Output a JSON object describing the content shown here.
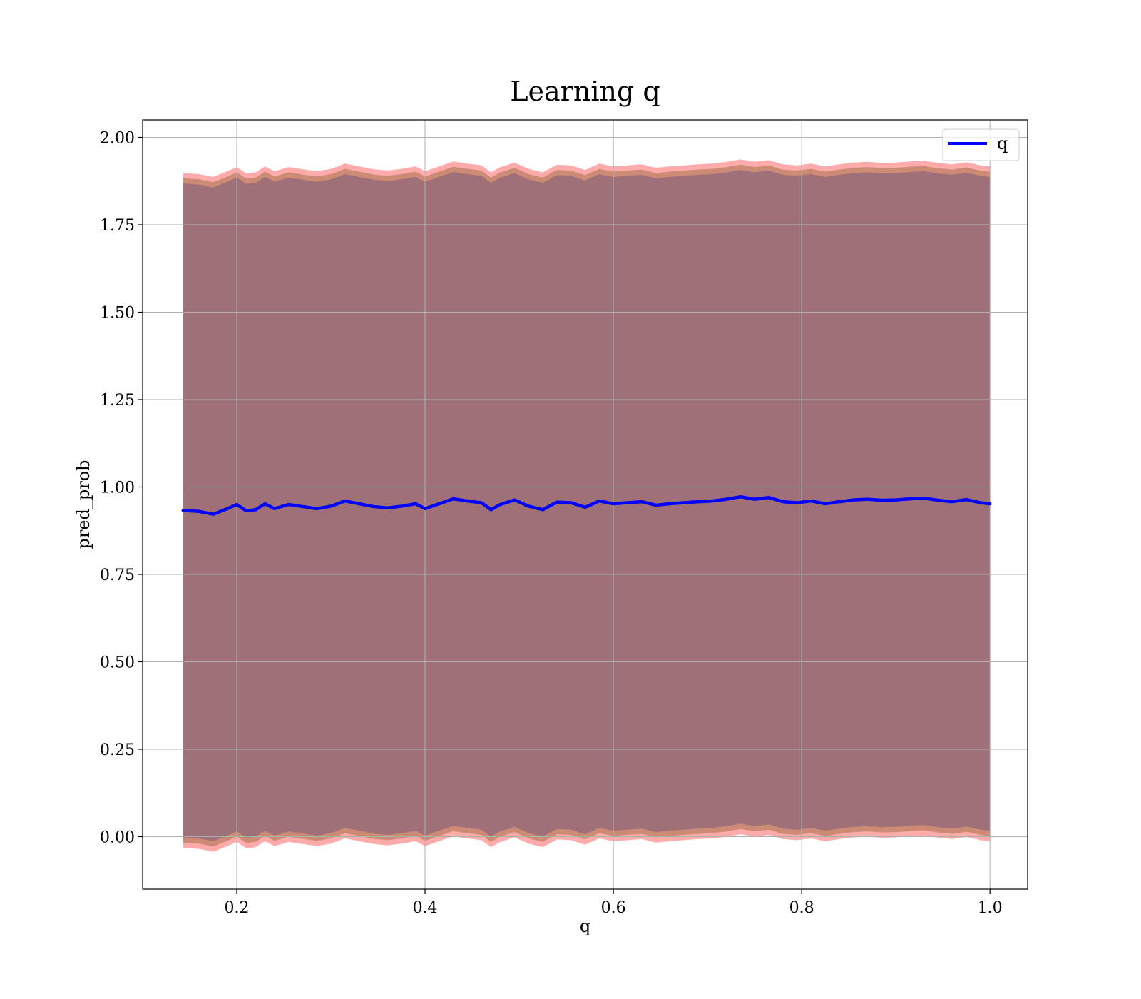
{
  "chart_data": {
    "type": "line",
    "title": "Learning q",
    "xlabel": "q",
    "ylabel": "pred_prob",
    "xlim": [
      0.1,
      1.04
    ],
    "ylim": [
      -0.15,
      2.05
    ],
    "xticks": [
      0.2,
      0.4,
      0.6,
      0.8,
      1.0
    ],
    "xtick_labels": [
      "0.2",
      "0.4",
      "0.6",
      "0.8",
      "1.0"
    ],
    "yticks": [
      0.0,
      0.25,
      0.5,
      0.75,
      1.0,
      1.25,
      1.5,
      1.75,
      2.0
    ],
    "ytick_labels": [
      "0.00",
      "0.25",
      "0.50",
      "0.75",
      "1.00",
      "1.25",
      "1.50",
      "1.75",
      "2.00"
    ],
    "grid": true,
    "legend": {
      "position": "top-right",
      "entries": [
        "q"
      ]
    },
    "colors": {
      "line": "#0000ff",
      "outer_band": "#ff9c9c",
      "middle_band": "#c8866e",
      "inner_band": "#a07078",
      "grid": "#b0b0b0"
    },
    "series": [
      {
        "name": "q",
        "x": [
          0.143,
          0.16,
          0.175,
          0.19,
          0.2,
          0.21,
          0.22,
          0.23,
          0.24,
          0.255,
          0.27,
          0.285,
          0.3,
          0.315,
          0.33,
          0.345,
          0.36,
          0.375,
          0.39,
          0.4,
          0.415,
          0.43,
          0.445,
          0.46,
          0.47,
          0.48,
          0.495,
          0.51,
          0.525,
          0.54,
          0.555,
          0.57,
          0.585,
          0.6,
          0.615,
          0.63,
          0.645,
          0.66,
          0.675,
          0.69,
          0.705,
          0.72,
          0.735,
          0.75,
          0.765,
          0.78,
          0.795,
          0.81,
          0.825,
          0.84,
          0.855,
          0.87,
          0.885,
          0.9,
          0.915,
          0.93,
          0.945,
          0.96,
          0.975,
          0.99,
          1.0
        ],
        "values": [
          0.933,
          0.93,
          0.922,
          0.938,
          0.95,
          0.932,
          0.935,
          0.952,
          0.938,
          0.95,
          0.944,
          0.938,
          0.945,
          0.96,
          0.952,
          0.944,
          0.94,
          0.945,
          0.952,
          0.938,
          0.952,
          0.966,
          0.96,
          0.955,
          0.935,
          0.95,
          0.963,
          0.945,
          0.935,
          0.957,
          0.955,
          0.942,
          0.96,
          0.952,
          0.955,
          0.958,
          0.948,
          0.952,
          0.955,
          0.958,
          0.96,
          0.965,
          0.972,
          0.965,
          0.97,
          0.958,
          0.955,
          0.96,
          0.952,
          0.958,
          0.963,
          0.965,
          0.962,
          0.963,
          0.966,
          0.968,
          0.962,
          0.958,
          0.964,
          0.955,
          0.952
        ]
      }
    ],
    "bands": [
      {
        "role": "outer",
        "lower_offset": -0.965,
        "upper_offset": 0.965
      },
      {
        "role": "middle",
        "lower_offset": -0.95,
        "upper_offset": 0.95
      },
      {
        "role": "inner",
        "lower_offset": -0.935,
        "upper_offset": 0.935
      }
    ]
  }
}
